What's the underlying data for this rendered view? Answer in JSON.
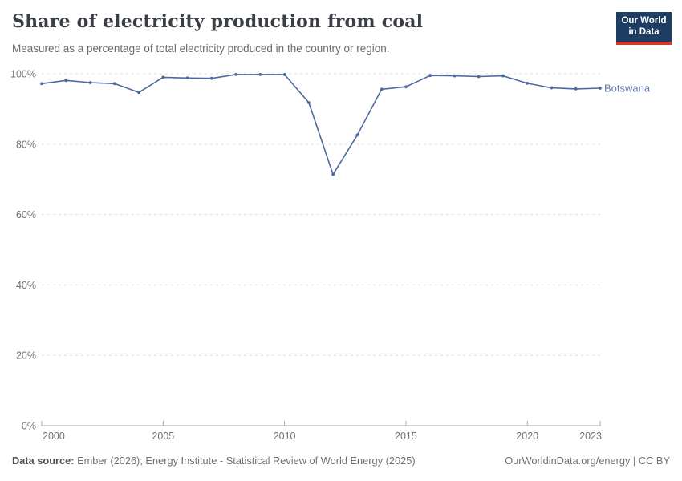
{
  "header": {
    "title": "Share of electricity production from coal",
    "subtitle": "Measured as a percentage of total electricity produced in the country or region.",
    "logo_line1": "Our World",
    "logo_line2": "in Data"
  },
  "chart_data": {
    "type": "line",
    "title": "Share of electricity production from coal",
    "xlabel": "",
    "ylabel": "",
    "xlim": [
      2000,
      2023
    ],
    "ylim": [
      0,
      100
    ],
    "grid": "horizontal-dashed",
    "legend_position": "end-of-line-label",
    "x_ticks": [
      2000,
      2005,
      2010,
      2015,
      2020,
      2023
    ],
    "x_tick_labels": [
      "2000",
      "2005",
      "2010",
      "2015",
      "2020",
      "2023"
    ],
    "y_ticks": [
      0,
      20,
      40,
      60,
      80,
      100
    ],
    "y_tick_labels": [
      "0%",
      "20%",
      "40%",
      "60%",
      "80%",
      "100%"
    ],
    "series": [
      {
        "name": "Botswana",
        "x": [
          2000,
          2001,
          2002,
          2003,
          2004,
          2005,
          2006,
          2007,
          2008,
          2009,
          2010,
          2011,
          2012,
          2013,
          2014,
          2015,
          2016,
          2017,
          2018,
          2019,
          2020,
          2021,
          2022,
          2023
        ],
        "values": [
          97.2,
          98.1,
          97.5,
          97.2,
          94.7,
          99.0,
          98.8,
          98.7,
          99.8,
          99.8,
          99.8,
          91.8,
          71.4,
          82.6,
          95.6,
          96.3,
          99.5,
          99.4,
          99.2,
          99.4,
          97.3,
          96.0,
          95.7,
          95.9
        ]
      }
    ]
  },
  "colors": {
    "line": "#4c6aa0",
    "series_label": "#6278ae",
    "grid": "#dedede",
    "axis": "#a8a8a8",
    "tick_text": "#6e7176",
    "logo_bg": "#1d3d63",
    "logo_red": "#d6392f"
  },
  "footer": {
    "source_label": "Data source:",
    "source_text": " Ember (2026); Energy Institute - Statistical Review of World Energy (2025)",
    "credit": "OurWorldinData.org/energy | CC BY"
  }
}
